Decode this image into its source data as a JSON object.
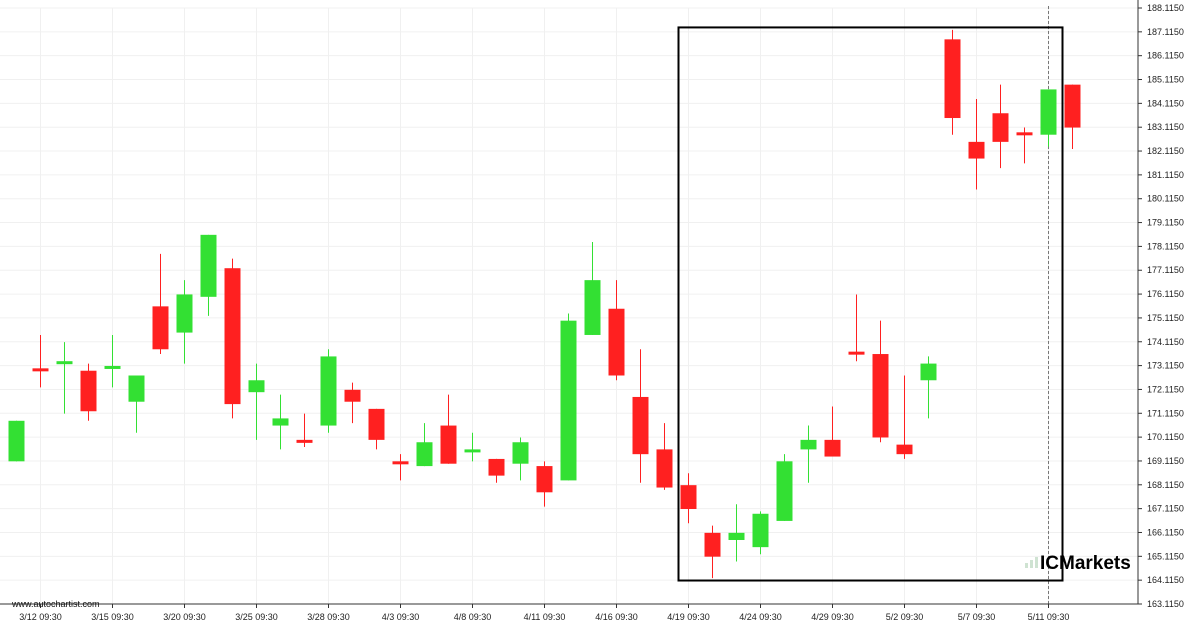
{
  "chart_data": {
    "type": "candlestick",
    "source": "www.autochartist.com",
    "brand": {
      "prefix": "IC",
      "name": "Markets",
      "color": "#cfe3d2"
    },
    "colors": {
      "up": "#33e033",
      "down": "#ff2020",
      "grid": "#f0f0f0",
      "highlight_box": "#000000"
    },
    "y_axis": {
      "ylim": [
        163.115,
        188.115
      ],
      "tick_step": 1,
      "side": "right"
    },
    "x_labels": [
      {
        "index": 1,
        "label": "3/12 09:30"
      },
      {
        "index": 4,
        "label": "3/15 09:30"
      },
      {
        "index": 7,
        "label": "3/20 09:30"
      },
      {
        "index": 10,
        "label": "3/25 09:30"
      },
      {
        "index": 13,
        "label": "3/28 09:30"
      },
      {
        "index": 16,
        "label": "4/3 09:30"
      },
      {
        "index": 19,
        "label": "4/8 09:30"
      },
      {
        "index": 22,
        "label": "4/11 09:30"
      },
      {
        "index": 25,
        "label": "4/16 09:30"
      },
      {
        "index": 28,
        "label": "4/19 09:30"
      },
      {
        "index": 31,
        "label": "4/24 09:30"
      },
      {
        "index": 34,
        "label": "4/29 09:30"
      },
      {
        "index": 37,
        "label": "5/2 09:30"
      },
      {
        "index": 40,
        "label": "5/7 09:30"
      },
      {
        "index": 43,
        "label": "5/11 09:30"
      }
    ],
    "current_index": 43,
    "highlight_range": {
      "from_index": 28,
      "to_index": 44,
      "low": 164.1,
      "high": 187.3
    },
    "candles": [
      {
        "o": 169.1,
        "h": 170.8,
        "l": 169.1,
        "c": 170.8
      },
      {
        "o": 173.0,
        "h": 174.4,
        "l": 172.2,
        "c": 172.9
      },
      {
        "o": 173.2,
        "h": 174.1,
        "l": 171.1,
        "c": 173.3
      },
      {
        "o": 172.9,
        "h": 173.2,
        "l": 170.8,
        "c": 171.2
      },
      {
        "o": 173.0,
        "h": 174.4,
        "l": 172.2,
        "c": 173.1
      },
      {
        "o": 171.6,
        "h": 172.7,
        "l": 170.3,
        "c": 172.7
      },
      {
        "o": 175.6,
        "h": 177.8,
        "l": 173.6,
        "c": 173.8
      },
      {
        "o": 174.5,
        "h": 176.7,
        "l": 173.2,
        "c": 176.1
      },
      {
        "o": 176.0,
        "h": 178.6,
        "l": 175.2,
        "c": 178.6
      },
      {
        "o": 177.2,
        "h": 177.6,
        "l": 170.9,
        "c": 171.5
      },
      {
        "o": 172.0,
        "h": 173.2,
        "l": 170.0,
        "c": 172.5
      },
      {
        "o": 170.6,
        "h": 171.9,
        "l": 169.6,
        "c": 170.9
      },
      {
        "o": 170.0,
        "h": 171.1,
        "l": 169.7,
        "c": 169.9
      },
      {
        "o": 170.6,
        "h": 173.8,
        "l": 170.3,
        "c": 173.5
      },
      {
        "o": 172.1,
        "h": 172.4,
        "l": 170.7,
        "c": 171.6
      },
      {
        "o": 171.3,
        "h": 171.3,
        "l": 169.6,
        "c": 170.0
      },
      {
        "o": 169.1,
        "h": 169.4,
        "l": 168.3,
        "c": 169.0
      },
      {
        "o": 168.9,
        "h": 170.7,
        "l": 168.9,
        "c": 169.9
      },
      {
        "o": 170.6,
        "h": 171.9,
        "l": 169.0,
        "c": 169.0
      },
      {
        "o": 169.6,
        "h": 170.3,
        "l": 169.1,
        "c": 169.6
      },
      {
        "o": 169.2,
        "h": 169.2,
        "l": 168.2,
        "c": 168.5
      },
      {
        "o": 169.0,
        "h": 170.1,
        "l": 168.3,
        "c": 169.9
      },
      {
        "o": 168.9,
        "h": 169.1,
        "l": 167.2,
        "c": 167.8
      },
      {
        "o": 168.3,
        "h": 175.3,
        "l": 168.3,
        "c": 175.0
      },
      {
        "o": 174.4,
        "h": 178.3,
        "l": 174.4,
        "c": 176.7
      },
      {
        "o": 175.5,
        "h": 176.7,
        "l": 172.5,
        "c": 172.7
      },
      {
        "o": 171.8,
        "h": 173.8,
        "l": 168.2,
        "c": 169.4
      },
      {
        "o": 169.6,
        "h": 170.7,
        "l": 167.9,
        "c": 168.0
      },
      {
        "o": 168.1,
        "h": 168.6,
        "l": 166.5,
        "c": 167.1
      },
      {
        "o": 166.1,
        "h": 166.4,
        "l": 164.2,
        "c": 165.1
      },
      {
        "o": 165.8,
        "h": 167.3,
        "l": 164.9,
        "c": 166.1
      },
      {
        "o": 165.5,
        "h": 167.0,
        "l": 165.2,
        "c": 166.9
      },
      {
        "o": 166.6,
        "h": 169.4,
        "l": 166.6,
        "c": 169.1
      },
      {
        "o": 169.6,
        "h": 170.6,
        "l": 168.2,
        "c": 170.0
      },
      {
        "o": 170.0,
        "h": 171.4,
        "l": 169.4,
        "c": 169.3
      },
      {
        "o": 173.7,
        "h": 176.1,
        "l": 173.3,
        "c": 173.6
      },
      {
        "o": 173.6,
        "h": 175.0,
        "l": 169.9,
        "c": 170.1
      },
      {
        "o": 169.8,
        "h": 172.7,
        "l": 169.2,
        "c": 169.4
      },
      {
        "o": 172.5,
        "h": 173.5,
        "l": 170.9,
        "c": 173.2
      },
      {
        "o": 186.8,
        "h": 187.2,
        "l": 182.8,
        "c": 183.5
      },
      {
        "o": 182.5,
        "h": 184.3,
        "l": 180.5,
        "c": 181.8
      },
      {
        "o": 183.7,
        "h": 184.9,
        "l": 181.4,
        "c": 182.5
      },
      {
        "o": 182.9,
        "h": 183.1,
        "l": 181.6,
        "c": 182.8
      },
      {
        "o": 182.8,
        "h": 184.7,
        "l": 182.3,
        "c": 184.7
      },
      {
        "o": 184.9,
        "h": 184.9,
        "l": 182.2,
        "c": 183.1
      }
    ]
  }
}
